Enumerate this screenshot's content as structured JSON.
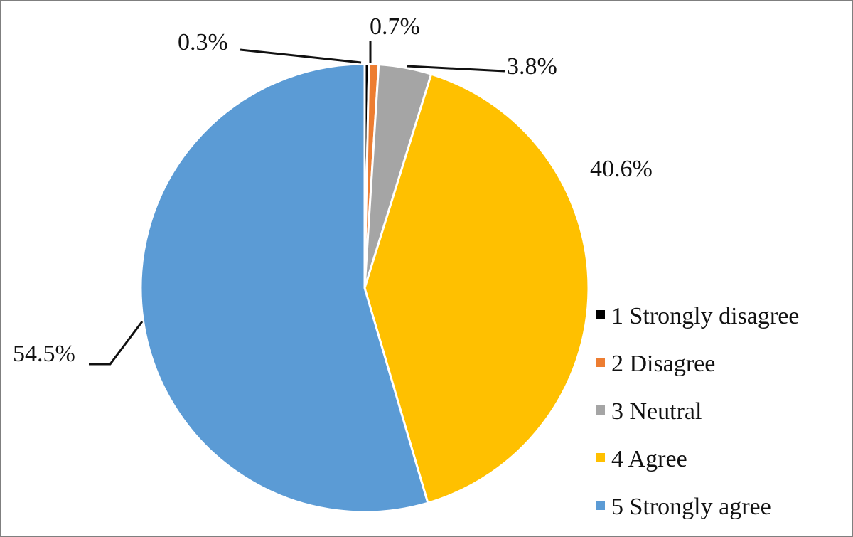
{
  "chart_data": {
    "type": "pie",
    "categories": [
      "1 Strongly disagree",
      "2 Disagree",
      "3 Neutral",
      "4 Agree",
      "5 Strongly agree"
    ],
    "values": [
      0.3,
      0.7,
      3.8,
      40.6,
      54.5
    ],
    "data_labels": [
      "0.3%",
      "0.7%",
      "3.8%",
      "40.6%",
      "54.5%"
    ],
    "colors": [
      "#000000",
      "#ed7d31",
      "#a5a5a5",
      "#ffc000",
      "#5b9bd5"
    ],
    "legend_position": "right",
    "title": "",
    "start_angle": "12 o'clock",
    "direction": "clockwise"
  }
}
